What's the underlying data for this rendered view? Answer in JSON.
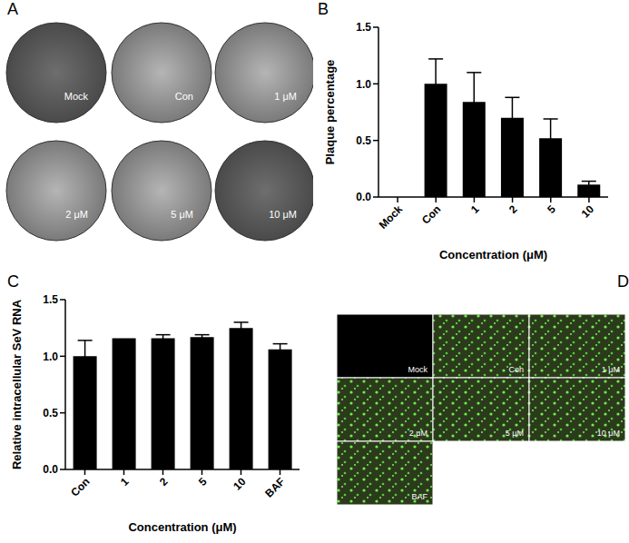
{
  "chart_data": [
    {
      "title": "B",
      "type": "bar",
      "categories": [
        "Mock",
        "Con",
        "1",
        "2",
        "5",
        "10"
      ],
      "values": [
        0,
        1.0,
        0.84,
        0.7,
        0.52,
        0.11
      ],
      "errors": [
        0,
        0.22,
        0.26,
        0.18,
        0.17,
        0.03
      ],
      "color": "#000000",
      "x_label": "Concentration (μM)",
      "y_label": "Plaque percentage",
      "ylim": [
        0,
        1.5
      ],
      "yticks": [
        {
          "value": 0,
          "label": "0.0"
        },
        {
          "value": 0.5,
          "label": "0.5"
        },
        {
          "value": 1.0,
          "label": "1.0"
        },
        {
          "value": 1.5,
          "label": "1.5"
        }
      ]
    },
    {
      "title": "C",
      "type": "bar",
      "categories": [
        "Con",
        "1",
        "2",
        "5",
        "10",
        "BAF"
      ],
      "values": [
        1.0,
        1.16,
        1.16,
        1.17,
        1.25,
        1.06
      ],
      "errors": [
        0.14,
        0,
        0.03,
        0.02,
        0.05,
        0.05
      ],
      "color": "#000000",
      "x_label": "Concentration (μM)",
      "y_label": "Relative intracellular SeV RNA",
      "ylim": [
        0,
        1.5
      ],
      "yticks": [
        {
          "value": 0,
          "label": "0.0"
        },
        {
          "value": 0.5,
          "label": "0.5"
        },
        {
          "value": 1.0,
          "label": "1.0"
        },
        {
          "value": 1.5,
          "label": "1.5"
        }
      ]
    }
  ],
  "image_panels": [
    {
      "title": "A",
      "labels": [
        "Mock",
        "Con",
        "1 μM",
        "2 μM",
        "5 μM",
        "10 μM"
      ]
    },
    {
      "title": "D",
      "labels": [
        "Mock",
        "Con",
        "1 μM",
        "2 μM",
        "5 μM",
        "10 μM",
        "BAF"
      ]
    }
  ]
}
